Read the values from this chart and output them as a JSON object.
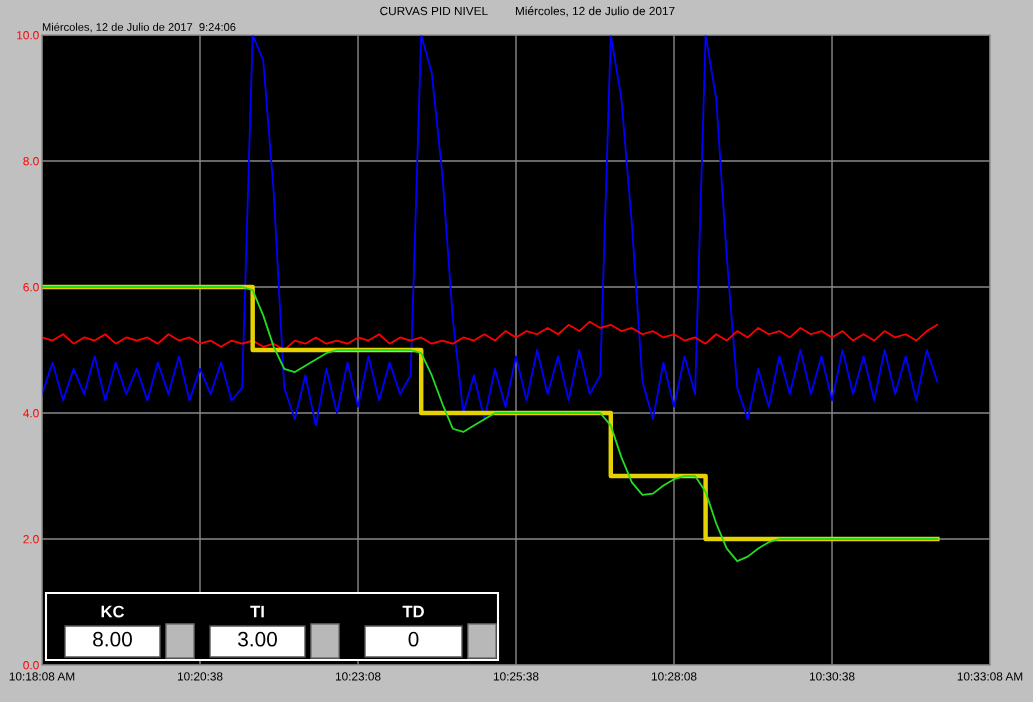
{
  "chart_data": {
    "type": "line",
    "title": "CURVAS PID NIVEL",
    "annotations": [
      "Miércoles, 12 de Julio de 2017  9:24:06",
      "Miércoles, 12 de Julio de 2017",
      "KC",
      "8.00",
      "TI",
      "3.00",
      "TD",
      "0"
    ],
    "x": [
      10.30222,
      10.305,
      10.30778,
      10.31056,
      10.31333,
      10.31611,
      10.31889,
      10.32167,
      10.32444,
      10.32722,
      10.33,
      10.33278,
      10.33556,
      10.33833,
      10.34111,
      10.34389,
      10.34667,
      10.34944,
      10.35222,
      10.355,
      10.35778,
      10.36056,
      10.36333,
      10.36611,
      10.36889,
      10.37167,
      10.37444,
      10.37722,
      10.38,
      10.38278,
      10.38556,
      10.38833,
      10.39111,
      10.39389,
      10.39667,
      10.39944,
      10.40222,
      10.405,
      10.40778,
      10.41056,
      10.41333,
      10.41611,
      10.41889,
      10.42167,
      10.42444,
      10.42722,
      10.43,
      10.43278,
      10.43556,
      10.43833,
      10.44111,
      10.44389,
      10.44667,
      10.44944,
      10.45222,
      10.455,
      10.45778,
      10.46056,
      10.46333,
      10.46611,
      10.46889,
      10.47167,
      10.47444,
      10.47722,
      10.48,
      10.48278,
      10.48556,
      10.48833,
      10.49111,
      10.49389,
      10.49667,
      10.49944,
      10.50222,
      10.505,
      10.50778,
      10.51056,
      10.51333,
      10.51611,
      10.51889,
      10.52167,
      10.52444,
      10.52722,
      10.53,
      10.53278,
      10.53556,
      10.53833
    ],
    "series": [
      {
        "color": "#0000ff",
        "values": [
          4.3,
          4.8,
          4.2,
          4.7,
          4.3,
          4.9,
          4.2,
          4.8,
          4.3,
          4.7,
          4.2,
          4.8,
          4.3,
          4.9,
          4.2,
          4.7,
          4.3,
          4.8,
          4.2,
          4.4,
          10.0,
          9.6,
          7.5,
          4.4,
          3.9,
          4.6,
          3.8,
          4.7,
          4.0,
          4.8,
          4.1,
          4.9,
          4.2,
          4.8,
          4.3,
          4.6,
          10.0,
          9.4,
          7.8,
          5.5,
          4.0,
          4.6,
          3.9,
          4.7,
          4.1,
          4.9,
          4.2,
          5.0,
          4.3,
          4.9,
          4.2,
          5.0,
          4.3,
          4.6,
          10.0,
          9.0,
          7.0,
          4.5,
          3.9,
          4.8,
          4.1,
          4.9,
          4.3,
          10.0,
          9.0,
          6.5,
          4.4,
          3.9,
          4.7,
          4.1,
          4.9,
          4.3,
          5.0,
          4.3,
          4.9,
          4.2,
          5.0,
          4.3,
          4.9,
          4.2,
          5.0,
          4.3,
          4.9,
          4.2,
          5.0,
          4.5
        ]
      },
      {
        "color": "#ff0000",
        "values": [
          5.2,
          5.15,
          5.25,
          5.1,
          5.2,
          5.15,
          5.25,
          5.1,
          5.2,
          5.15,
          5.2,
          5.1,
          5.25,
          5.15,
          5.2,
          5.1,
          5.15,
          5.05,
          5.15,
          5.1,
          5.15,
          5.05,
          5.1,
          5.0,
          5.15,
          5.1,
          5.2,
          5.1,
          5.15,
          5.1,
          5.2,
          5.15,
          5.25,
          5.1,
          5.2,
          5.15,
          5.2,
          5.1,
          5.15,
          5.1,
          5.2,
          5.15,
          5.25,
          5.15,
          5.3,
          5.2,
          5.3,
          5.25,
          5.35,
          5.25,
          5.4,
          5.3,
          5.45,
          5.35,
          5.4,
          5.3,
          5.35,
          5.25,
          5.3,
          5.2,
          5.25,
          5.15,
          5.2,
          5.1,
          5.25,
          5.15,
          5.3,
          5.2,
          5.35,
          5.25,
          5.3,
          5.2,
          5.35,
          5.25,
          5.3,
          5.2,
          5.3,
          5.15,
          5.25,
          5.15,
          5.3,
          5.2,
          5.25,
          5.15,
          5.3,
          5.4
        ]
      },
      {
        "type": "step",
        "color": "#e6d200",
        "values": [
          6,
          6,
          6,
          6,
          6,
          6,
          6,
          6,
          6,
          6,
          6,
          6,
          6,
          6,
          6,
          6,
          6,
          6,
          6,
          6,
          5,
          5,
          5,
          5,
          5,
          5,
          5,
          5,
          5,
          5,
          5,
          5,
          5,
          5,
          5,
          5,
          4,
          4,
          4,
          4,
          4,
          4,
          4,
          4,
          4,
          4,
          4,
          4,
          4,
          4,
          4,
          4,
          4,
          4,
          3,
          3,
          3,
          3,
          3,
          3,
          3,
          3,
          3,
          2,
          2,
          2,
          2,
          2,
          2,
          2,
          2,
          2,
          2,
          2,
          2,
          2,
          2,
          2,
          2,
          2,
          2,
          2,
          2,
          2,
          2,
          2
        ]
      },
      {
        "color": "#22dd22",
        "values": [
          6.0,
          6.0,
          6.0,
          6.0,
          6.0,
          6.0,
          6.0,
          6.0,
          6.0,
          6.0,
          6.0,
          6.0,
          6.0,
          6.0,
          6.0,
          6.0,
          6.0,
          6.0,
          6.0,
          6.0,
          5.95,
          5.55,
          5.05,
          4.7,
          4.65,
          4.75,
          4.85,
          4.95,
          5.0,
          5.0,
          5.0,
          5.0,
          5.0,
          5.0,
          5.0,
          5.0,
          4.95,
          4.6,
          4.15,
          3.75,
          3.7,
          3.8,
          3.9,
          4.0,
          4.0,
          4.0,
          4.0,
          4.0,
          4.0,
          4.0,
          4.0,
          4.0,
          4.0,
          4.0,
          3.8,
          3.3,
          2.9,
          2.7,
          2.72,
          2.85,
          2.95,
          3.0,
          3.0,
          2.75,
          2.25,
          1.85,
          1.65,
          1.72,
          1.85,
          1.95,
          2.0,
          2.0,
          2.0,
          2.0,
          2.0,
          2.0,
          2.0,
          2.0,
          2.0,
          2.0,
          2.0,
          2.0,
          2.0,
          2.0,
          2.0,
          2.0
        ]
      }
    ],
    "xlim": [
      10.30222,
      10.55222
    ],
    "xticks": [
      {
        "value": 10.30222,
        "label": "10:18:08 AM"
      },
      {
        "value": 10.34389,
        "label": "10:20:38"
      },
      {
        "value": 10.38556,
        "label": "10:23:08"
      },
      {
        "value": 10.42722,
        "label": "10:25:38"
      },
      {
        "value": 10.46889,
        "label": "10:28:08"
      },
      {
        "value": 10.51056,
        "label": "10:30:38"
      },
      {
        "value": 10.55222,
        "label": "10:33:08 AM"
      }
    ],
    "ylim": [
      0,
      10
    ],
    "yticks": [
      {
        "value": 0,
        "label": "0.0"
      },
      {
        "value": 2,
        "label": "2.0"
      },
      {
        "value": 4,
        "label": "4.0"
      },
      {
        "value": 6,
        "label": "6.0"
      },
      {
        "value": 8,
        "label": "8.0"
      },
      {
        "value": 10,
        "label": "10.0"
      }
    ],
    "grid": true,
    "marker": "none",
    "line_style": "solid"
  }
}
